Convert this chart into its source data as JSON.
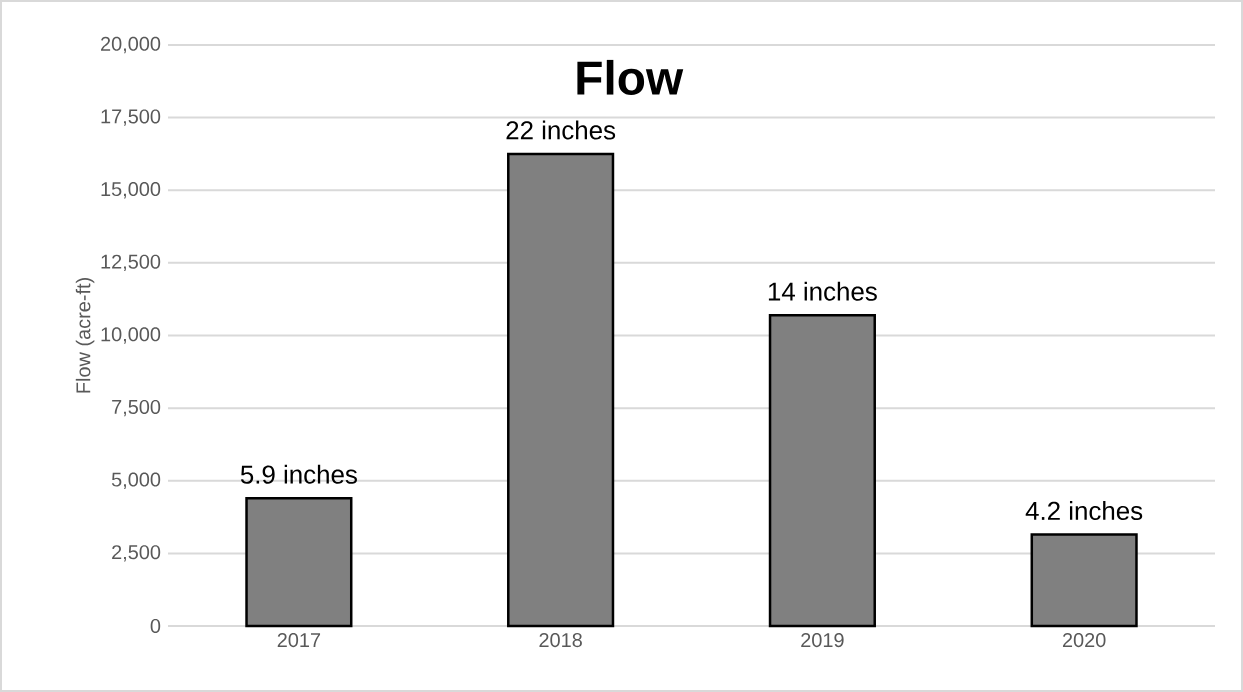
{
  "chart_data": {
    "type": "bar",
    "title": "Flow",
    "ylabel": "Flow (acre-ft)",
    "categories": [
      "2017",
      "2018",
      "2019",
      "2020"
    ],
    "values": [
      4400,
      16250,
      10700,
      3150
    ],
    "annotations": [
      {
        "text": "5.9 inches",
        "x": "2017",
        "y": 4400
      },
      {
        "text": "22 inches",
        "x": "2018",
        "y": 16250
      },
      {
        "text": "14 inches",
        "x": "2019",
        "y": 10700
      },
      {
        "text": "4.2 inches",
        "x": "2020",
        "y": 3150
      }
    ],
    "color": "#808080",
    "ylim": [
      0,
      20000
    ],
    "yticks": [
      {
        "value": 0,
        "label": "0"
      },
      {
        "value": 2500,
        "label": "2,500"
      },
      {
        "value": 5000,
        "label": "5,000"
      },
      {
        "value": 7500,
        "label": "7,500"
      },
      {
        "value": 10000,
        "label": "10,000"
      },
      {
        "value": 12500,
        "label": "12,500"
      },
      {
        "value": 15000,
        "label": "15,000"
      },
      {
        "value": 17500,
        "label": "17,500"
      },
      {
        "value": 20000,
        "label": "20,000"
      }
    ],
    "grid": "y"
  }
}
